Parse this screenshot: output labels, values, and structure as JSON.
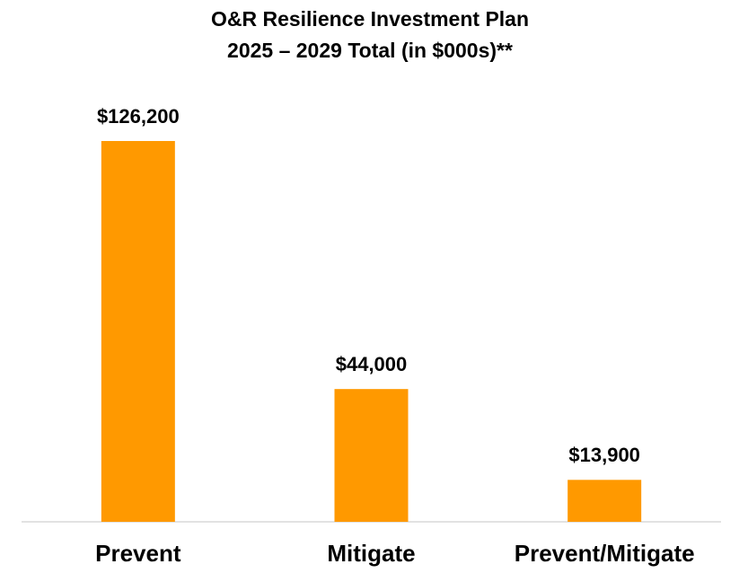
{
  "chart_data": {
    "type": "bar",
    "title": "O&R Resilience Investment Plan",
    "subtitle": "2025 – 2029 Total (in $000s)**",
    "categories": [
      "Prevent",
      "Mitigate",
      "Prevent/Mitigate"
    ],
    "values": [
      126200,
      44000,
      13900
    ],
    "value_labels": [
      "$126,200",
      "$44,000",
      "$13,900"
    ],
    "color": "#ff9900"
  }
}
